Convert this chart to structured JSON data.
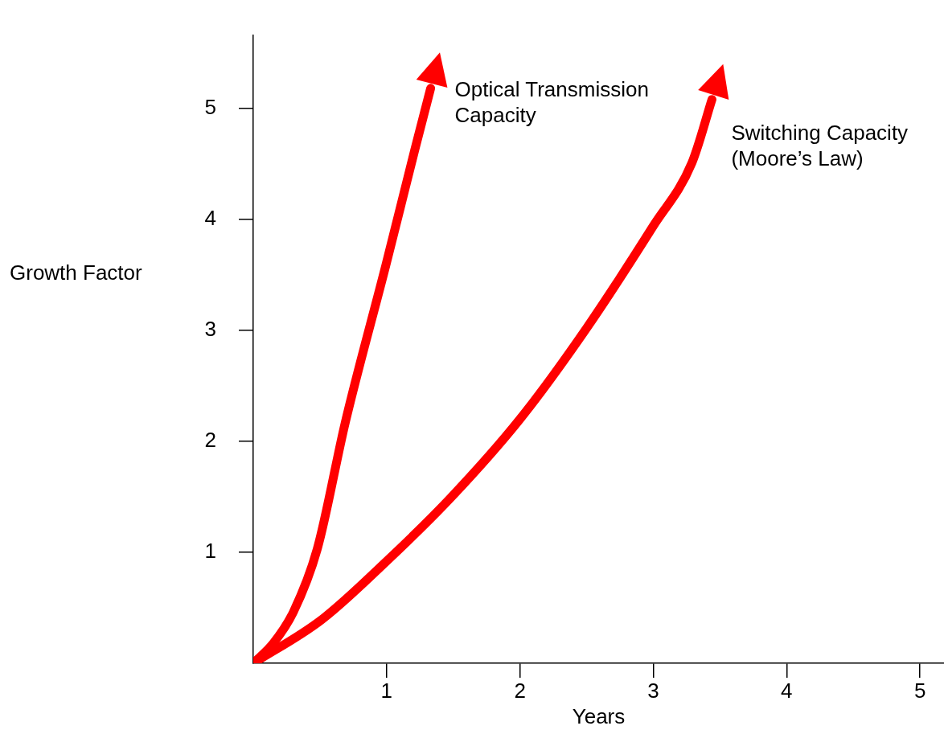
{
  "chart_data": {
    "type": "line",
    "xlabel": "Years",
    "ylabel": "Growth Factor",
    "xlim": [
      0,
      5.18
    ],
    "ylim": [
      0,
      5.66
    ],
    "xticks": [
      1,
      2,
      3,
      4,
      5
    ],
    "yticks": [
      1,
      2,
      3,
      4,
      5
    ],
    "grid": false,
    "marker": "none",
    "line_style": "solid",
    "series": [
      {
        "name": "Optical Transmission Capacity",
        "color": "#ff0000",
        "x": [
          0,
          0.15,
          0.3,
          0.48,
          0.69,
          0.995,
          1.21,
          1.33
        ],
        "values": [
          0,
          0.18,
          0.46,
          1.03,
          2.17,
          3.59,
          4.62,
          5.18
        ]
      },
      {
        "name": "Switching Capacity (Moore’s Law)",
        "color": "#ff0000",
        "x": [
          0,
          0.51,
          1.0,
          1.48,
          2.0,
          2.5,
          3.0,
          3.29,
          3.44
        ],
        "values": [
          0,
          0.39,
          0.92,
          1.49,
          2.2,
          3.02,
          3.94,
          4.51,
          5.08
        ]
      }
    ]
  }
}
